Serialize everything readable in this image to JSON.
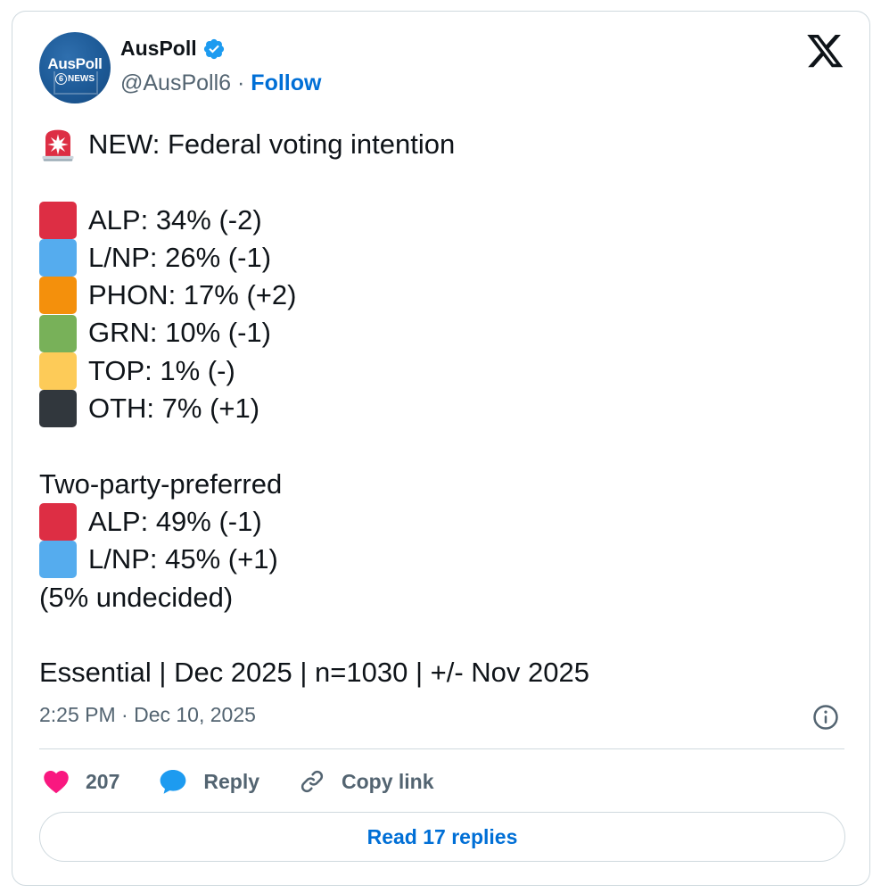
{
  "author": {
    "avatar_line1": "AusPoll",
    "avatar_line2": "NEWS",
    "avatar_six": "6",
    "display_name": "AusPoll",
    "handle": "@AusPoll6",
    "separator": "·",
    "follow_label": "Follow",
    "verified_color": "#1d9bf0"
  },
  "tweet": {
    "headline": "NEW: Federal voting intention",
    "primary_vote": [
      {
        "label": "ALP: 34% (-2)",
        "party": "ALP",
        "value": 34,
        "change": "-2",
        "color": "#dd2e44"
      },
      {
        "label": "L/NP: 26% (-1)",
        "party": "L/NP",
        "value": 26,
        "change": "-1",
        "color": "#55acee"
      },
      {
        "label": "PHON: 17% (+2)",
        "party": "PHON",
        "value": 17,
        "change": "+2",
        "color": "#f4900c"
      },
      {
        "label": "GRN: 10% (-1)",
        "party": "GRN",
        "value": 10,
        "change": "-1",
        "color": "#78b159"
      },
      {
        "label": "TOP: 1% (-)",
        "party": "TOP",
        "value": 1,
        "change": "-",
        "color": "#fdcb58"
      },
      {
        "label": "OTH: 7% (+1)",
        "party": "OTH",
        "value": 7,
        "change": "+1",
        "color": "#31373d"
      }
    ],
    "tpp_heading": "Two-party-preferred",
    "tpp": [
      {
        "label": "ALP: 49% (-1)",
        "party": "ALP",
        "value": 49,
        "change": "-1",
        "color": "#dd2e44"
      },
      {
        "label": "L/NP: 45% (+1)",
        "party": "L/NP",
        "value": 45,
        "change": "+1",
        "color": "#55acee"
      }
    ],
    "undecided": "(5% undecided)",
    "source_line": "Essential | Dec 2025 | n=1030 | +/- Nov 2025"
  },
  "meta": {
    "timestamp": "2:25 PM · Dec 10, 2025"
  },
  "actions": {
    "likes": "207",
    "reply_label": "Reply",
    "copy_link_label": "Copy link",
    "read_replies_label": "Read 17 replies"
  }
}
